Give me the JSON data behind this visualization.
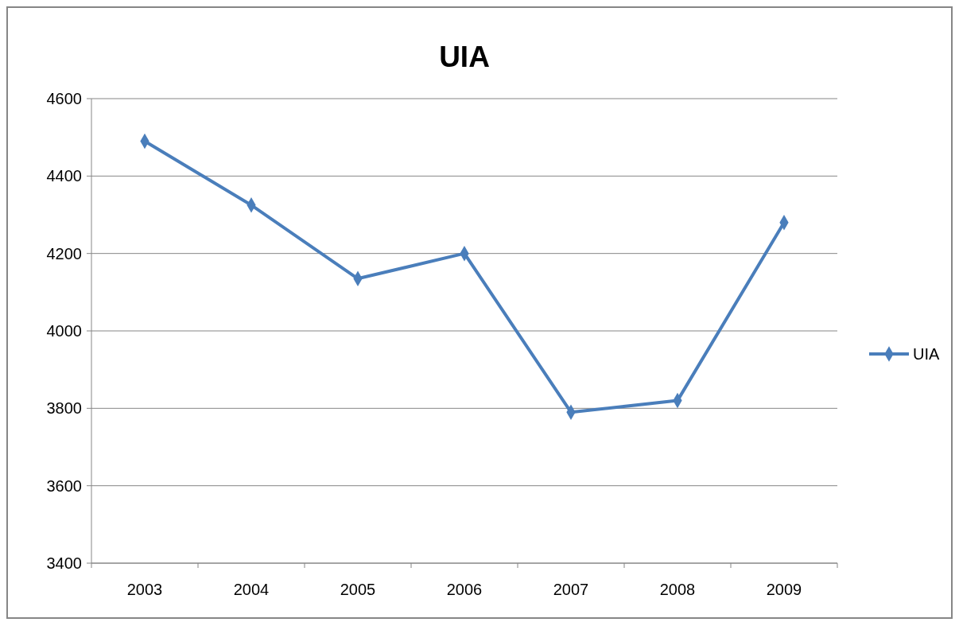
{
  "chart_data": {
    "type": "line",
    "title": "UIA",
    "categories": [
      "2003",
      "2004",
      "2005",
      "2006",
      "2007",
      "2008",
      "2009"
    ],
    "series": [
      {
        "name": "UIA",
        "color": "#4a7ebb",
        "values": [
          4490,
          4325,
          4135,
          4200,
          3790,
          3820,
          4280
        ]
      }
    ],
    "ylim": [
      3400,
      4600
    ],
    "yticks": [
      3400,
      3600,
      3800,
      4000,
      4200,
      4400,
      4600
    ],
    "grid": "y",
    "legend": "right",
    "marker": "diamond",
    "line_style": "solid"
  }
}
